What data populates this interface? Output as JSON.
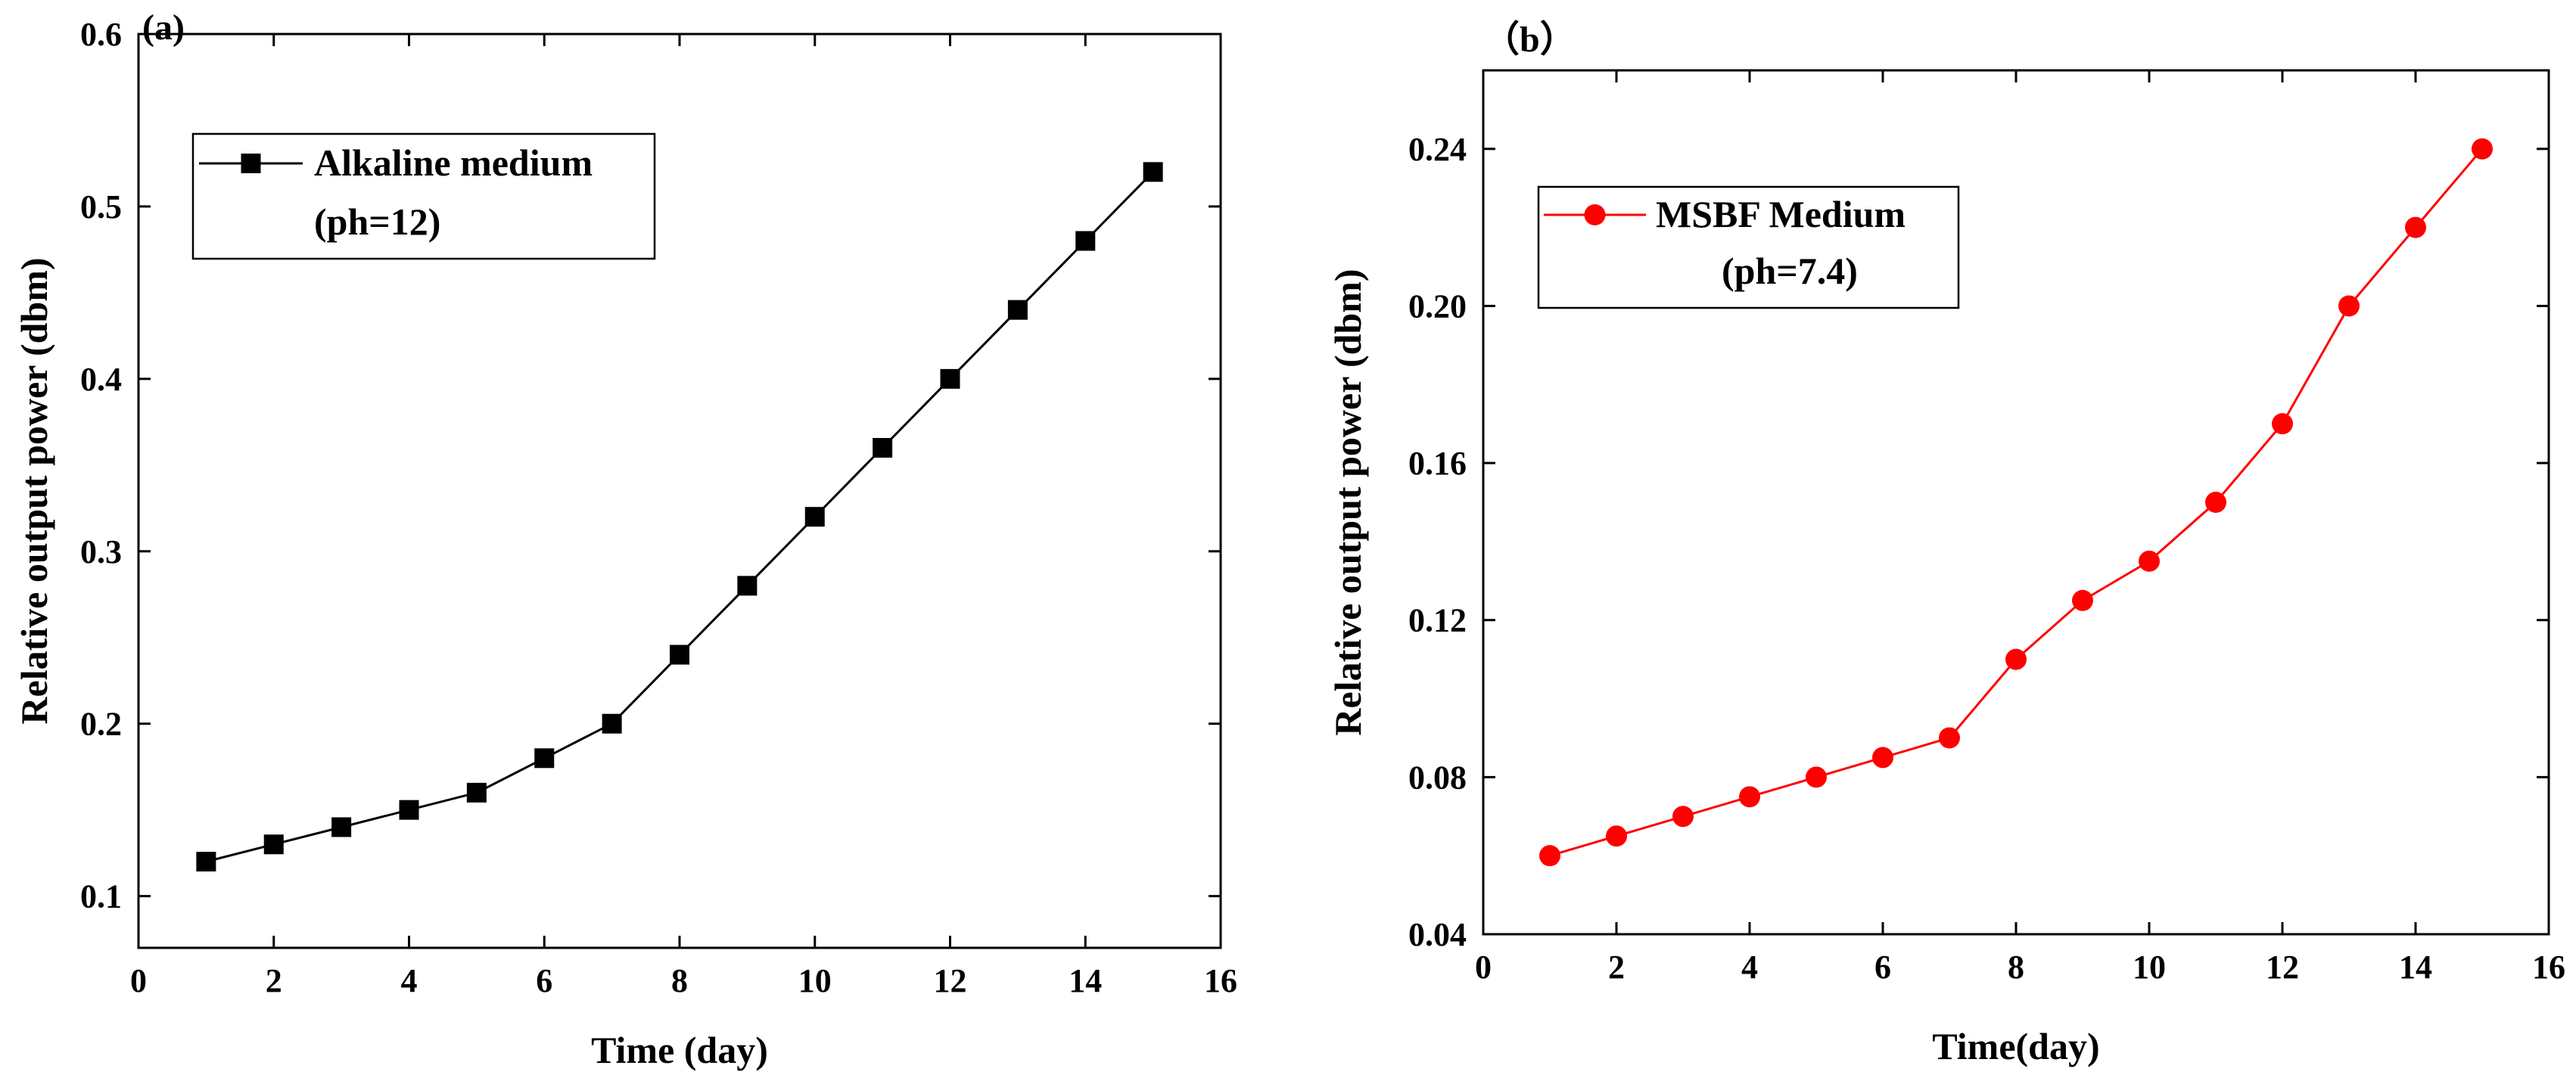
{
  "chart_data": [
    {
      "type": "line",
      "panel_label": "(a)",
      "title": "",
      "xlabel": "Time (day)",
      "ylabel": "Relative output power (dbm)",
      "xlim": [
        0,
        16
      ],
      "ylim": [
        0.07,
        0.6
      ],
      "xticks": [
        0,
        2,
        4,
        6,
        8,
        10,
        12,
        14,
        16
      ],
      "yticks": [
        0.1,
        0.2,
        0.3,
        0.4,
        0.5,
        0.6
      ],
      "xtick_labels": [
        "0",
        "2",
        "4",
        "6",
        "8",
        "10",
        "12",
        "14",
        "16"
      ],
      "ytick_labels": [
        "0.1",
        "0.2",
        "0.3",
        "0.4",
        "0.5",
        "0.6"
      ],
      "legend_position": "top-left",
      "series": [
        {
          "name": "Alkaline medium",
          "name_line2": "(ph=12)",
          "color": "#000000",
          "marker": "square",
          "x": [
            1,
            2,
            3,
            4,
            5,
            6,
            7,
            8,
            9,
            10,
            11,
            12,
            13,
            14,
            15
          ],
          "values": [
            0.12,
            0.13,
            0.14,
            0.15,
            0.16,
            0.18,
            0.2,
            0.24,
            0.28,
            0.32,
            0.36,
            0.4,
            0.44,
            0.48,
            0.52
          ]
        }
      ]
    },
    {
      "type": "line",
      "panel_label": "（b）",
      "title": "",
      "xlabel": "Time(day)",
      "ylabel": "Relative output power (dbm)",
      "xlim": [
        0,
        16
      ],
      "ylim": [
        0.04,
        0.26
      ],
      "xticks": [
        0,
        2,
        4,
        6,
        8,
        10,
        12,
        14,
        16
      ],
      "yticks": [
        0.04,
        0.08,
        0.12,
        0.16,
        0.2,
        0.24
      ],
      "xtick_labels": [
        "0",
        "2",
        "4",
        "6",
        "8",
        "10",
        "12",
        "14",
        "16"
      ],
      "ytick_labels": [
        "0.04",
        "0.08",
        "0.12",
        "0.16",
        "0.20",
        "0.24"
      ],
      "legend_position": "top-left",
      "series": [
        {
          "name": "MSBF Medium",
          "name_line2": "(ph=7.4)",
          "color": "#ff0000",
          "marker": "circle",
          "x": [
            1,
            2,
            3,
            4,
            5,
            6,
            7,
            8,
            9,
            10,
            11,
            12,
            13,
            14,
            15
          ],
          "values": [
            0.06,
            0.065,
            0.07,
            0.075,
            0.08,
            0.085,
            0.09,
            0.11,
            0.125,
            0.135,
            0.15,
            0.17,
            0.2,
            0.22,
            0.24
          ]
        }
      ]
    }
  ]
}
